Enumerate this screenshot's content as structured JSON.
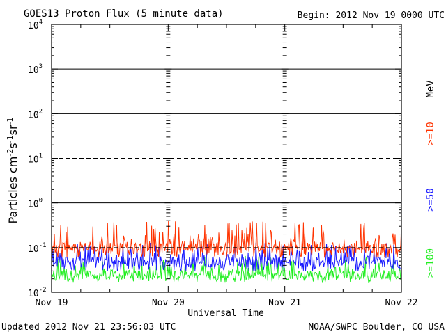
{
  "header": {
    "title": "GOES13 Proton Flux (5 minute data)",
    "begin": "Begin: 2012 Nov 19 0000 UTC"
  },
  "footer": {
    "updated": "Updated 2012 Nov 21 23:56:03 UTC",
    "credit": "NOAA/SWPC Boulder, CO USA"
  },
  "colors": {
    "ge10": "#ff3300",
    "ge50": "#1a1aff",
    "ge100": "#22ee22",
    "background": "#ffffff",
    "axis": "#000000"
  },
  "chart_data": {
    "type": "line",
    "title": "GOES13 Proton Flux (5 minute data)",
    "xlabel": "Universal Time",
    "ylabel": "Particles cm-2 s-1 sr-1",
    "y_scale": "log",
    "ylim": [
      0.01,
      10000
    ],
    "xlim": [
      "2012-11-19",
      "2012-11-22"
    ],
    "x_ticks": [
      "Nov 19",
      "Nov 20",
      "Nov 21",
      "Nov 22"
    ],
    "y_ticks": [
      {
        "base": "10",
        "exp": "4"
      },
      {
        "base": "10",
        "exp": "3"
      },
      {
        "base": "10",
        "exp": "2"
      },
      {
        "base": "10",
        "exp": "1"
      },
      {
        "base": "10",
        "exp": "0"
      },
      {
        "base": "10",
        "exp": "-1"
      },
      {
        "base": "10",
        "exp": "-2"
      }
    ],
    "gridlines": [
      1000,
      100,
      10,
      1,
      0.1
    ],
    "dashed_gridlines": [
      10,
      0.1
    ],
    "grid": true,
    "legend_position": "right",
    "series": [
      {
        "name": ">=10",
        "unit": "MeV",
        "color": "#ff3300",
        "baseline": 0.1,
        "range": [
          0.06,
          0.4
        ]
      },
      {
        "name": ">=50",
        "color": "#1a1aff",
        "baseline": 0.05,
        "range": [
          0.03,
          0.13
        ]
      },
      {
        "name": ">=100",
        "color": "#22ee22",
        "baseline": 0.025,
        "range": [
          0.017,
          0.065
        ]
      }
    ]
  }
}
